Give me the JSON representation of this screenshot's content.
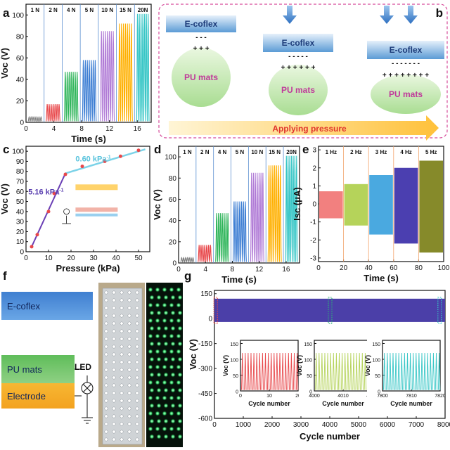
{
  "panel_labels": [
    "a",
    "b",
    "c",
    "d",
    "e",
    "f",
    "g"
  ],
  "colors": {
    "force_series": [
      "#7f7f7f",
      "#e8474a",
      "#2fb55a",
      "#3e7fd4",
      "#b07ad6",
      "#ffb000",
      "#37c6c6"
    ],
    "freq_series": [
      "#f2807f",
      "#b5d35a",
      "#4aa9e0",
      "#4b3fb0",
      "#868a2a"
    ],
    "cycle_main": "#4b3fa8",
    "inset_colors": [
      "#e8474a",
      "#b5d35a",
      "#37c6c6"
    ],
    "fit_line_1": "#6a3fb5",
    "fit_line_2": "#7cd3e8",
    "arrow_band": "#ffcb4a",
    "pu_mat": "#c8e8b8",
    "coflex": "#5b9bd5"
  },
  "chart_data": [
    {
      "panel": "a",
      "type": "line",
      "xlabel": "Time (s)",
      "ylabel": "Voc (V)",
      "xlim": [
        0,
        18
      ],
      "ylim": [
        0,
        110
      ],
      "xticks": [
        0,
        4,
        8,
        12,
        16
      ],
      "yticks": [
        0,
        20,
        40,
        60,
        80,
        100
      ],
      "series": [
        {
          "name": "1 N",
          "x_range": [
            0,
            2.6
          ],
          "amplitude": 5
        },
        {
          "name": "2 N",
          "x_range": [
            2.6,
            5.2
          ],
          "amplitude": 17
        },
        {
          "name": "4 N",
          "x_range": [
            5.2,
            7.8
          ],
          "amplitude": 47
        },
        {
          "name": "5 N",
          "x_range": [
            7.8,
            10.4
          ],
          "amplitude": 58
        },
        {
          "name": "10 N",
          "x_range": [
            10.4,
            13.0
          ],
          "amplitude": 85
        },
        {
          "name": "15 N",
          "x_range": [
            13.0,
            15.6
          ],
          "amplitude": 92
        },
        {
          "name": "20N",
          "x_range": [
            15.6,
            18.0
          ],
          "amplitude": 101
        }
      ]
    },
    {
      "panel": "c",
      "type": "scatter",
      "xlabel": "Pressure (kPa)",
      "ylabel": "Voc (V)",
      "xlim": [
        0,
        55
      ],
      "ylim": [
        0,
        105
      ],
      "xticks": [
        0,
        10,
        20,
        30,
        40,
        50
      ],
      "yticks": [
        0,
        10,
        20,
        30,
        40,
        50,
        60,
        70,
        80,
        90,
        100
      ],
      "x": [
        2.5,
        5,
        10,
        12.5,
        17.5,
        25,
        35,
        42,
        50
      ],
      "y": [
        5,
        17,
        40,
        58,
        77,
        85,
        90,
        95,
        101
      ],
      "annotations": [
        "5.16 kPa",
        "0.60 kPa"
      ],
      "superscript": "-1"
    },
    {
      "panel": "d",
      "type": "line",
      "xlabel": "Time (s)",
      "ylabel": "Voc (V)",
      "xlim": [
        0,
        18
      ],
      "ylim": [
        0,
        110
      ],
      "xticks": [
        0,
        4,
        8,
        12,
        16
      ],
      "yticks": [
        0,
        20,
        40,
        60,
        80,
        100
      ],
      "series": [
        {
          "name": "1 N",
          "x_range": [
            0,
            2.6
          ],
          "amplitude": 5
        },
        {
          "name": "2 N",
          "x_range": [
            2.6,
            5.2
          ],
          "amplitude": 17
        },
        {
          "name": "4 N",
          "x_range": [
            5.2,
            7.8
          ],
          "amplitude": 47
        },
        {
          "name": "5 N",
          "x_range": [
            7.8,
            10.4
          ],
          "amplitude": 58
        },
        {
          "name": "10 N",
          "x_range": [
            10.4,
            13.0
          ],
          "amplitude": 85
        },
        {
          "name": "15 N",
          "x_range": [
            13.0,
            15.6
          ],
          "amplitude": 92
        },
        {
          "name": "20N",
          "x_range": [
            15.6,
            18.0
          ],
          "amplitude": 101
        }
      ]
    },
    {
      "panel": "e",
      "type": "area",
      "xlabel": "Time (s)",
      "ylabel": "Isc (μA)",
      "xlim": [
        0,
        100
      ],
      "ylim": [
        -3.2,
        3.2
      ],
      "xticks": [
        0,
        20,
        40,
        60,
        80,
        100
      ],
      "yticks": [
        -3,
        -2,
        -1,
        0,
        1,
        2,
        3
      ],
      "series": [
        {
          "name": "1 Hz",
          "x_range": [
            0,
            20
          ],
          "upper": 0.7,
          "lower": -0.8
        },
        {
          "name": "2 Hz",
          "x_range": [
            20,
            40
          ],
          "upper": 1.1,
          "lower": -1.2
        },
        {
          "name": "3 Hz",
          "x_range": [
            40,
            60
          ],
          "upper": 1.6,
          "lower": -1.7
        },
        {
          "name": "4 Hz",
          "x_range": [
            60,
            80
          ],
          "upper": 2.0,
          "lower": -2.2
        },
        {
          "name": "5 Hz",
          "x_range": [
            80,
            100
          ],
          "upper": 2.4,
          "lower": -2.7
        }
      ]
    },
    {
      "panel": "g",
      "type": "area",
      "xlabel": "Cycle number",
      "ylabel": "Voc (V)",
      "xlim": [
        0,
        8000
      ],
      "ylim": [
        -600,
        170
      ],
      "xticks": [
        0,
        1000,
        2000,
        3000,
        4000,
        5000,
        6000,
        7000,
        8000
      ],
      "yticks": [
        -600,
        -450,
        -300,
        -150,
        0,
        150
      ],
      "upper": 120,
      "lower": -20,
      "insets": [
        {
          "xlabel": "Cycle number",
          "ylabel": "Voc (V)",
          "xticks": [
            0,
            10,
            20
          ],
          "yticks": [
            0,
            50,
            100,
            150
          ]
        },
        {
          "xlabel": "Cycle number",
          "ylabel": "Voc (V)",
          "xticks": [
            4000,
            4010,
            4020
          ],
          "yticks": [
            0,
            50,
            100,
            150
          ]
        },
        {
          "xlabel": "Cycle number",
          "ylabel": "Voc (V)",
          "xticks": [
            7800,
            7810,
            7820
          ],
          "yticks": [
            0,
            50,
            100,
            150
          ]
        }
      ]
    }
  ],
  "schematic_b": {
    "stages": [
      {
        "top": "E-coflex",
        "top_charge": "- - -",
        "bottom_charge": "+ + +",
        "bottom": "PU mats"
      },
      {
        "top": "E-coflex",
        "top_charge": "- - - - -",
        "bottom_charge": "+ + + + + +",
        "bottom": "PU mats"
      },
      {
        "top": "E-coflex",
        "top_charge": "- - - - - - -",
        "bottom_charge": "+ + + + + + + +",
        "bottom": "PU mats"
      }
    ],
    "arrow_label": "Applying pressure"
  },
  "schematic_f": {
    "top_layer": "E-coflex",
    "mid_layer": "PU mats",
    "bottom_layer": "Electrode",
    "led_label": "LED"
  }
}
